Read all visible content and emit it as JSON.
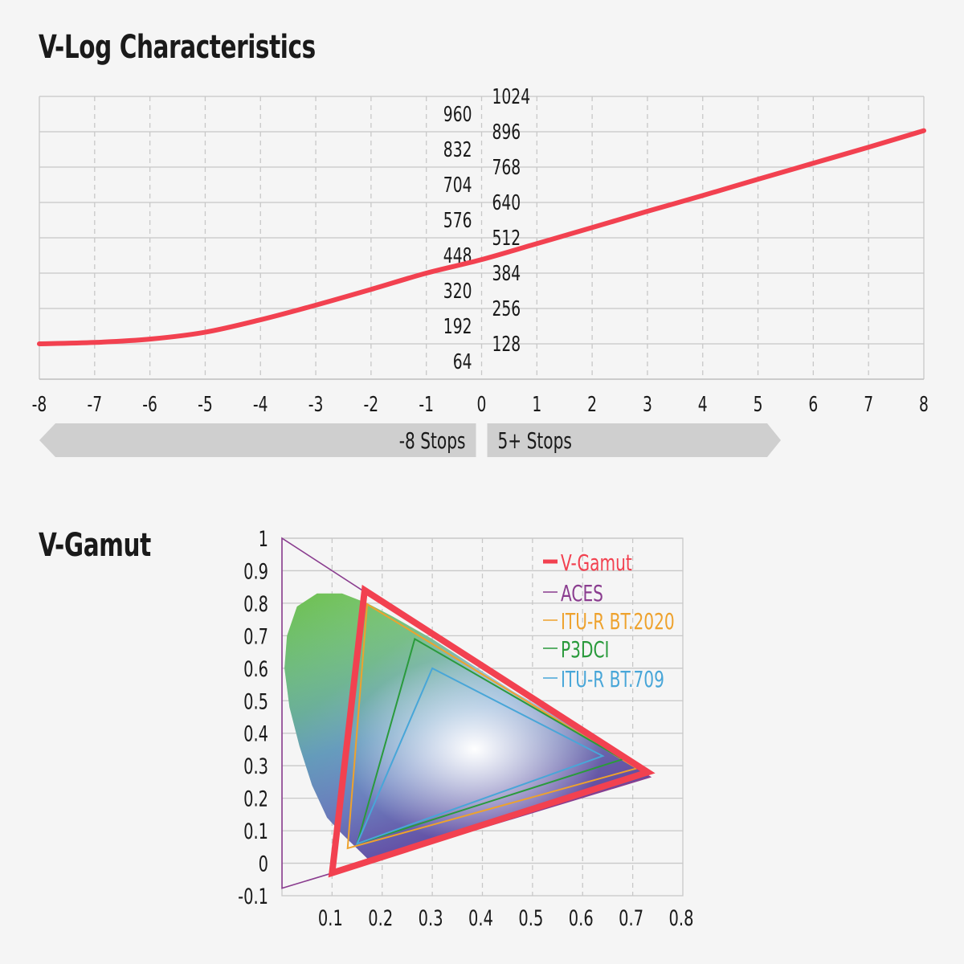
{
  "colors": {
    "background": "#f5f5f5",
    "curve": "#f24150",
    "grid_solid": "#c8c8c8",
    "grid_dashed": "#c8c8c8",
    "arrow_fill": "#cfcfcf",
    "aces": "#8a3d8f",
    "bt2020": "#eea22d",
    "p3dci": "#2a9a3c",
    "bt709": "#48a6d8"
  },
  "vlog": {
    "title": "V-Log Characteristics",
    "stops_left": "-8 Stops",
    "stops_right": "5+ Stops"
  },
  "vgamut": {
    "title": "V-Gamut"
  },
  "chart_data": [
    {
      "type": "line",
      "title": "V-Log Characteristics",
      "xlim": [
        -8,
        8
      ],
      "x_ticks": [
        "-8",
        "-7",
        "-6",
        "-5",
        "-4",
        "-3",
        "-2",
        "-1",
        "0",
        "1",
        "2",
        "3",
        "4",
        "5",
        "6",
        "7",
        "8"
      ],
      "y_ticks_left": [
        "64",
        "192",
        "320",
        "448",
        "576",
        "704",
        "832",
        "960"
      ],
      "y_ticks_right": [
        "128",
        "256",
        "384",
        "512",
        "640",
        "768",
        "896",
        "1024"
      ],
      "ylim": [
        0,
        1024
      ],
      "grid": true,
      "series": [
        {
          "x": [
            -8,
            -7,
            -6,
            -5,
            -4,
            -3,
            -2,
            -1,
            0,
            1,
            2,
            3,
            4,
            5,
            6,
            7,
            8
          ],
          "y": [
            128,
            133,
            145,
            170,
            215,
            268,
            325,
            384,
            433,
            491,
            549,
            608,
            665,
            724,
            782,
            840,
            900
          ]
        }
      ]
    },
    {
      "type": "scatter",
      "title": "V-Gamut",
      "xlim": [
        0,
        0.8
      ],
      "ylim": [
        -0.1,
        1
      ],
      "x_ticks": [
        "0.1",
        "0.2",
        "0.3",
        "0.4",
        "0.5",
        "0.6",
        "0.7",
        "0.8"
      ],
      "y_ticks": [
        "1",
        "0.9",
        "0.8",
        "0.7",
        "0.6",
        "0.5",
        "0.4",
        "0.3",
        "0.2",
        "0.1",
        "0",
        "-0.1"
      ],
      "grid": true,
      "legend_position": "top-right",
      "series": [
        {
          "name": "V-Gamut",
          "points": [
            [
              0.73,
              0.28
            ],
            [
              0.165,
              0.84
            ],
            [
              0.1,
              -0.03
            ]
          ]
        },
        {
          "name": "ACES",
          "points": [
            [
              0.7347,
              0.2653
            ],
            [
              0.0,
              1.0
            ],
            [
              0.0001,
              -0.077
            ]
          ]
        },
        {
          "name": "ITU-R BT.2020",
          "points": [
            [
              0.708,
              0.292
            ],
            [
              0.17,
              0.797
            ],
            [
              0.131,
              0.046
            ]
          ]
        },
        {
          "name": "P3DCI",
          "points": [
            [
              0.68,
              0.32
            ],
            [
              0.265,
              0.69
            ],
            [
              0.15,
              0.06
            ]
          ]
        },
        {
          "name": "ITU-R BT.709",
          "points": [
            [
              0.64,
              0.33
            ],
            [
              0.3,
              0.6
            ],
            [
              0.15,
              0.06
            ]
          ]
        }
      ]
    }
  ]
}
